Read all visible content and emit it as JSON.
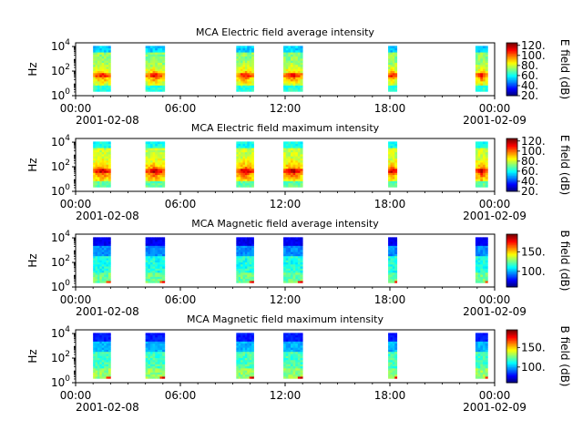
{
  "chart_data": [
    {
      "type": "heatmap",
      "title": "MCA  Electric field average intensity",
      "ylabel": "Hz",
      "yscale": "log",
      "yticks": [
        "10^0",
        "10^2",
        "10^4"
      ],
      "xticks": [
        "00:00",
        "06:00",
        "12:00",
        "18:00",
        "00:00"
      ],
      "xtick_hours": [
        0,
        6,
        12,
        18,
        24
      ],
      "date_start": "2001-02-08",
      "date_end": "2001-02-09",
      "colorbar_label": "E field (dB)",
      "colorbar_ticks": [
        "20.",
        "40.",
        "60.",
        "80.",
        "100.",
        "120."
      ],
      "colorbar_range": [
        20,
        125
      ],
      "colormap": "jet-rainbow",
      "scheme": "electric-avg",
      "passes_hours": [
        [
          1.0,
          2.0
        ],
        [
          4.0,
          5.1
        ],
        [
          9.2,
          10.2
        ],
        [
          11.9,
          13.0
        ],
        [
          17.9,
          18.4
        ],
        [
          22.9,
          23.6
        ]
      ]
    },
    {
      "type": "heatmap",
      "title": "MCA  Electric field maximum intensity",
      "ylabel": "Hz",
      "yscale": "log",
      "yticks": [
        "10^0",
        "10^2",
        "10^4"
      ],
      "xticks": [
        "00:00",
        "06:00",
        "12:00",
        "18:00",
        "00:00"
      ],
      "xtick_hours": [
        0,
        6,
        12,
        18,
        24
      ],
      "date_start": "2001-02-08",
      "date_end": "2001-02-09",
      "colorbar_label": "E field (dB)",
      "colorbar_ticks": [
        "20.",
        "40.",
        "60.",
        "80.",
        "100.",
        "120."
      ],
      "colorbar_range": [
        20,
        125
      ],
      "colormap": "jet-rainbow",
      "scheme": "electric-max",
      "passes_hours": [
        [
          1.0,
          2.0
        ],
        [
          4.0,
          5.1
        ],
        [
          9.2,
          10.2
        ],
        [
          11.9,
          13.0
        ],
        [
          17.9,
          18.4
        ],
        [
          22.9,
          23.6
        ]
      ]
    },
    {
      "type": "heatmap",
      "title": "MCA  Magnetic field average intensity",
      "ylabel": "Hz",
      "yscale": "log",
      "yticks": [
        "10^0",
        "10^2",
        "10^4"
      ],
      "xticks": [
        "00:00",
        "06:00",
        "12:00",
        "18:00",
        "00:00"
      ],
      "xtick_hours": [
        0,
        6,
        12,
        18,
        24
      ],
      "date_start": "2001-02-08",
      "date_end": "2001-02-09",
      "colorbar_label": "B field (dB)",
      "colorbar_ticks": [
        "100.",
        "150."
      ],
      "colorbar_range": [
        60,
        195
      ],
      "colormap": "jet-rainbow",
      "scheme": "magnetic-avg",
      "passes_hours": [
        [
          1.0,
          2.0
        ],
        [
          4.0,
          5.1
        ],
        [
          9.2,
          10.2
        ],
        [
          11.9,
          13.0
        ],
        [
          17.9,
          18.4
        ],
        [
          22.9,
          23.6
        ]
      ]
    },
    {
      "type": "heatmap",
      "title": "MCA  Magnetic field maximum intensity",
      "ylabel": "Hz",
      "yscale": "log",
      "yticks": [
        "10^0",
        "10^2",
        "10^4"
      ],
      "xticks": [
        "00:00",
        "06:00",
        "12:00",
        "18:00",
        "00:00"
      ],
      "xtick_hours": [
        0,
        6,
        12,
        18,
        24
      ],
      "date_start": "2001-02-08",
      "date_end": "2001-02-09",
      "colorbar_label": "B field (dB)",
      "colorbar_ticks": [
        "100.",
        "150."
      ],
      "colorbar_range": [
        60,
        195
      ],
      "colormap": "jet-rainbow",
      "scheme": "magnetic-max",
      "passes_hours": [
        [
          1.0,
          2.0
        ],
        [
          4.0,
          5.1
        ],
        [
          9.2,
          10.2
        ],
        [
          11.9,
          13.0
        ],
        [
          17.9,
          18.4
        ],
        [
          22.9,
          23.6
        ]
      ]
    }
  ]
}
